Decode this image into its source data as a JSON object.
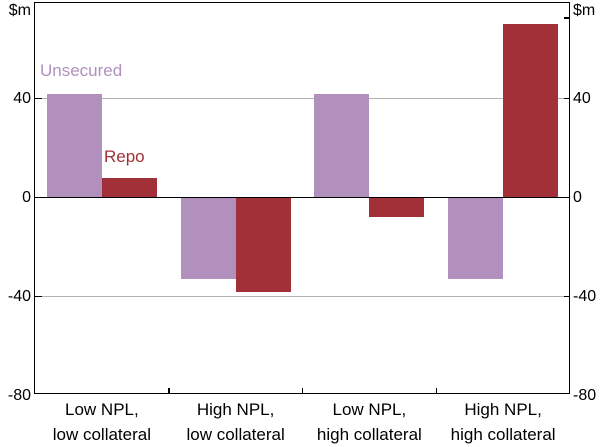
{
  "chart_data": {
    "type": "bar",
    "title": "",
    "unit_label": "$m",
    "xlabel": "",
    "ylabel": "$m",
    "ylim": [
      -80,
      80
    ],
    "grid": true,
    "gridline_values": [
      40,
      -40
    ],
    "ytick_labels": [
      "40",
      "0",
      "-40",
      "-80"
    ],
    "ytick_values": [
      40,
      0,
      -40,
      -80
    ],
    "axis_label_sides": "both",
    "legend_position": "inline annotations next to first group",
    "categories": [
      {
        "line1": "Low NPL,",
        "line2": "low collateral"
      },
      {
        "line1": "High NPL,",
        "line2": "low collateral"
      },
      {
        "line1": "Low NPL,",
        "line2": "high collateral"
      },
      {
        "line1": "High NPL,",
        "line2": "high collateral"
      }
    ],
    "series": [
      {
        "name": "Unsecured",
        "color": "#b190be",
        "values": [
          42,
          -33,
          42,
          -33
        ]
      },
      {
        "name": "Repo",
        "color": "#a23038",
        "values": [
          8,
          -38,
          -8,
          70
        ]
      }
    ],
    "colors": {
      "gridline": "#b3b3b3",
      "axis": "#000000",
      "background": "#ffffff",
      "unsecured": "#b190be",
      "repo": "#a23038"
    }
  }
}
